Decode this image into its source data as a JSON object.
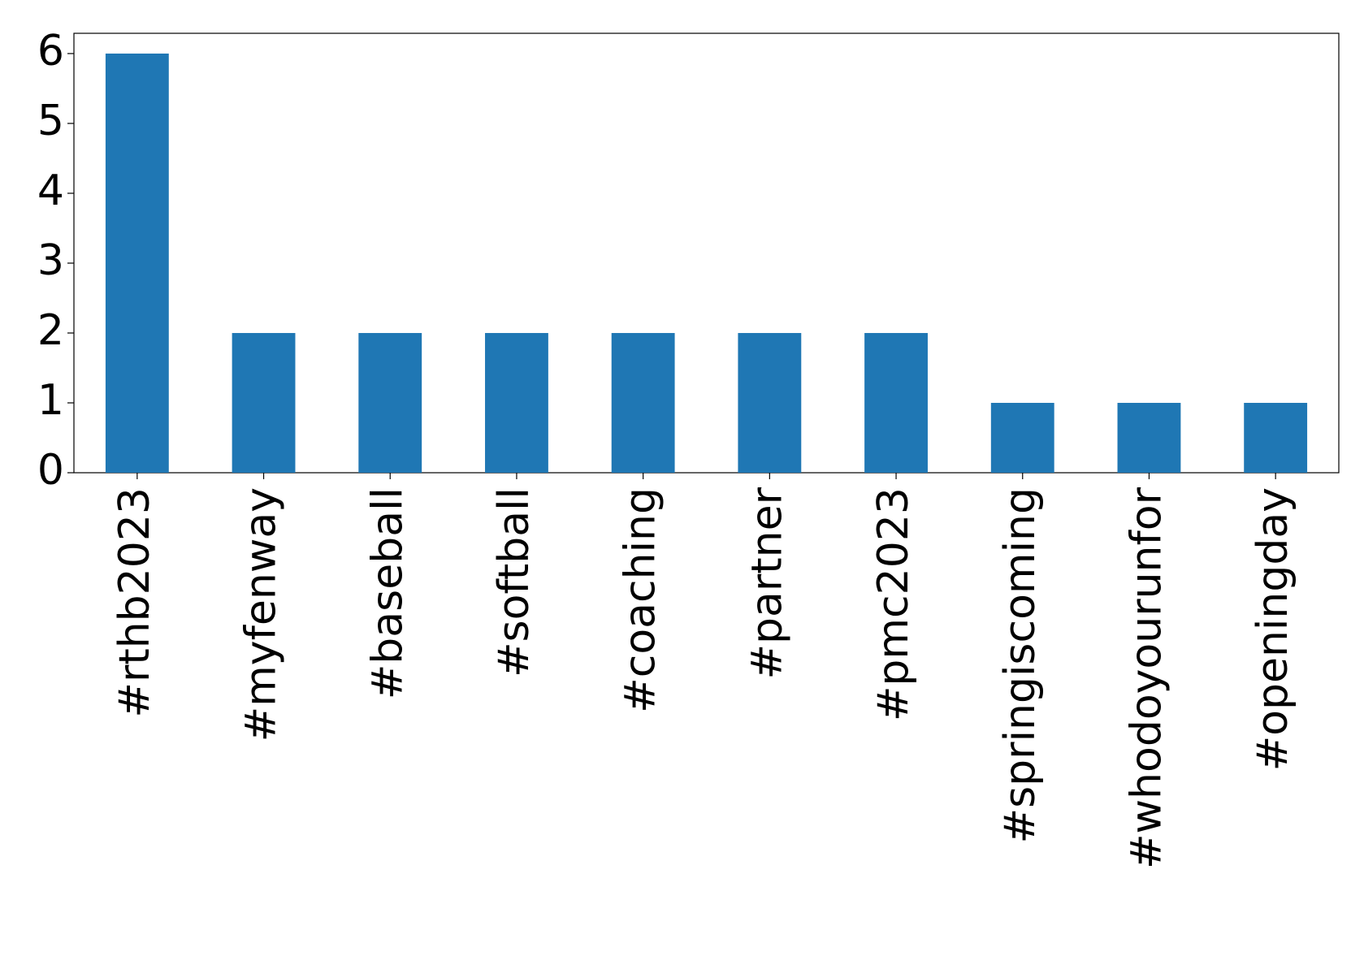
{
  "chart_data": {
    "type": "bar",
    "categories": [
      "#rthb2023",
      "#myfenway",
      "#baseball",
      "#softball",
      "#coaching",
      "#partner",
      "#pmc2023",
      "#springiscoming",
      "#whodoyourunfor",
      "#openingday"
    ],
    "values": [
      6,
      2,
      2,
      2,
      2,
      2,
      2,
      1,
      1,
      1
    ],
    "color": "#1f77b4",
    "ylim": [
      0,
      6.29
    ],
    "yticks": [
      0,
      1,
      2,
      3,
      4,
      5,
      6
    ],
    "grid": false
  }
}
